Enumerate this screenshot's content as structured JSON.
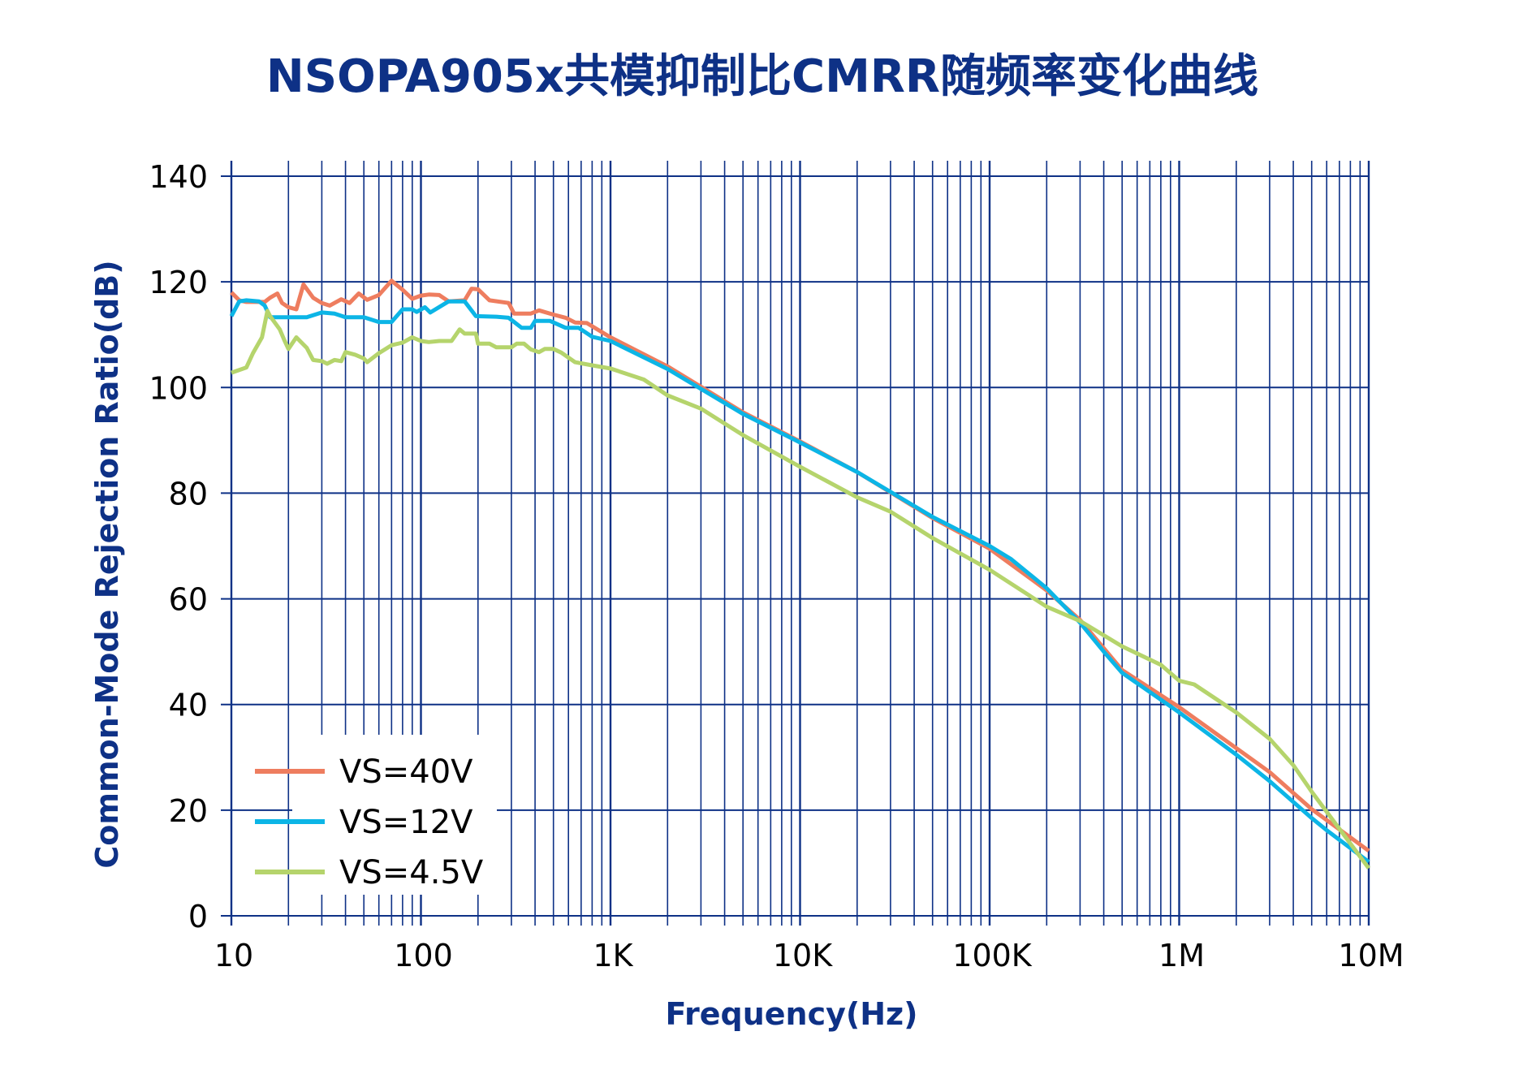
{
  "colors": {
    "title": "#0e3186",
    "grid": "#0e3186",
    "VS=40V": "#ee7d5f",
    "VS=12V": "#0cb5e6",
    "VS=4.5V": "#b5d46c"
  },
  "chart_data": {
    "type": "line",
    "title": "NSOPA905x共模抑制比CMRR随频率变化曲线",
    "xlabel": "Frequency(Hz)",
    "ylabel": "Common-Mode Rejection Ratio(dB)",
    "xscale": "log",
    "xlim": [
      10,
      10000000
    ],
    "ylim": [
      0,
      140
    ],
    "grid": true,
    "legend_position": "bottom-left",
    "xticks": [
      {
        "value": 10,
        "label": "10"
      },
      {
        "value": 100,
        "label": "100"
      },
      {
        "value": 1000,
        "label": "1K"
      },
      {
        "value": 10000,
        "label": "10K"
      },
      {
        "value": 100000,
        "label": "100K"
      },
      {
        "value": 1000000,
        "label": "1M"
      },
      {
        "value": 10000000,
        "label": "10M"
      }
    ],
    "yticks": [
      {
        "value": 0,
        "label": "0"
      },
      {
        "value": 20,
        "label": "20"
      },
      {
        "value": 40,
        "label": "40"
      },
      {
        "value": 60,
        "label": "60"
      },
      {
        "value": 80,
        "label": "80"
      },
      {
        "value": 100,
        "label": "100"
      },
      {
        "value": 120,
        "label": "120"
      },
      {
        "value": 140,
        "label": "140"
      }
    ],
    "series": [
      {
        "name": "VS=40V",
        "points": [
          [
            10,
            118
          ],
          [
            11,
            116.5
          ],
          [
            12,
            116.2
          ],
          [
            15,
            116.2
          ],
          [
            16,
            117
          ],
          [
            17.5,
            117.8
          ],
          [
            18.5,
            116
          ],
          [
            20,
            115.2
          ],
          [
            22,
            114.8
          ],
          [
            24,
            119.5
          ],
          [
            27,
            117
          ],
          [
            30,
            116
          ],
          [
            33,
            115.5
          ],
          [
            38,
            116.7
          ],
          [
            42,
            116
          ],
          [
            47,
            117.8
          ],
          [
            52,
            116.6
          ],
          [
            60,
            117.5
          ],
          [
            70,
            120.2
          ],
          [
            80,
            118.5
          ],
          [
            90,
            116.8
          ],
          [
            100,
            117.4
          ],
          [
            110,
            117.6
          ],
          [
            125,
            117.5
          ],
          [
            140,
            116.3
          ],
          [
            170,
            116.5
          ],
          [
            185,
            118.7
          ],
          [
            200,
            118.6
          ],
          [
            230,
            116.5
          ],
          [
            290,
            116
          ],
          [
            310,
            114
          ],
          [
            380,
            114
          ],
          [
            420,
            114.6
          ],
          [
            500,
            113.8
          ],
          [
            580,
            113.2
          ],
          [
            650,
            112.3
          ],
          [
            750,
            112.2
          ],
          [
            900,
            110.5
          ],
          [
            1000,
            109.5
          ],
          [
            2000,
            104
          ],
          [
            5000,
            95.3
          ],
          [
            10000,
            89.8
          ],
          [
            20000,
            84
          ],
          [
            50000,
            75.3
          ],
          [
            100000,
            69.5
          ],
          [
            200000,
            61.6
          ],
          [
            300000,
            56
          ],
          [
            500000,
            46.5
          ],
          [
            1000000,
            39.5
          ],
          [
            3000000,
            27.2
          ],
          [
            5000000,
            20.2
          ],
          [
            10000000,
            12.3
          ]
        ]
      },
      {
        "name": "VS=12V",
        "points": [
          [
            10,
            113.5
          ],
          [
            11,
            116.3
          ],
          [
            12,
            116.5
          ],
          [
            14,
            116.3
          ],
          [
            15,
            115.5
          ],
          [
            16,
            113.3
          ],
          [
            20,
            113.3
          ],
          [
            25,
            113.3
          ],
          [
            30,
            114.2
          ],
          [
            35,
            114
          ],
          [
            40,
            113.3
          ],
          [
            50,
            113.3
          ],
          [
            60,
            112.4
          ],
          [
            70,
            112.4
          ],
          [
            80,
            114.8
          ],
          [
            90,
            114.8
          ],
          [
            95,
            114.3
          ],
          [
            105,
            115.2
          ],
          [
            112,
            114.2
          ],
          [
            140,
            116.3
          ],
          [
            170,
            116.3
          ],
          [
            195,
            113.5
          ],
          [
            250,
            113.4
          ],
          [
            290,
            113.2
          ],
          [
            340,
            111.3
          ],
          [
            380,
            111.3
          ],
          [
            400,
            112.6
          ],
          [
            480,
            112.6
          ],
          [
            580,
            111.3
          ],
          [
            680,
            111.3
          ],
          [
            800,
            109.6
          ],
          [
            1000,
            108.8
          ],
          [
            2000,
            103.5
          ],
          [
            5000,
            95
          ],
          [
            10000,
            89.6
          ],
          [
            20000,
            84
          ],
          [
            50000,
            75.5
          ],
          [
            100000,
            70
          ],
          [
            130000,
            67.5
          ],
          [
            200000,
            62
          ],
          [
            300000,
            55.5
          ],
          [
            400000,
            50
          ],
          [
            500000,
            46
          ],
          [
            1000000,
            38.5
          ],
          [
            2000000,
            30.5
          ],
          [
            3000000,
            25.5
          ],
          [
            5000000,
            18.5
          ],
          [
            6000000,
            16.2
          ],
          [
            10000000,
            10.2
          ]
        ]
      },
      {
        "name": "VS=4.5V",
        "points": [
          [
            10,
            102.8
          ],
          [
            12,
            103.8
          ],
          [
            13,
            106.5
          ],
          [
            14.5,
            109.5
          ],
          [
            15.5,
            114.5
          ],
          [
            16,
            113.5
          ],
          [
            18,
            111
          ],
          [
            19,
            109
          ],
          [
            20,
            107.3
          ],
          [
            22,
            109.5
          ],
          [
            25,
            107.5
          ],
          [
            27,
            105.2
          ],
          [
            30,
            105
          ],
          [
            32,
            104.5
          ],
          [
            35,
            105.2
          ],
          [
            38,
            105
          ],
          [
            40,
            106.7
          ],
          [
            45,
            106.2
          ],
          [
            50,
            105.5
          ],
          [
            52,
            104.8
          ],
          [
            60,
            106.5
          ],
          [
            70,
            108
          ],
          [
            80,
            108.5
          ],
          [
            90,
            109.5
          ],
          [
            100,
            108.8
          ],
          [
            110,
            108.6
          ],
          [
            125,
            108.8
          ],
          [
            145,
            108.8
          ],
          [
            160,
            111
          ],
          [
            170,
            110.2
          ],
          [
            195,
            110.2
          ],
          [
            200,
            108.3
          ],
          [
            230,
            108.3
          ],
          [
            250,
            107.6
          ],
          [
            300,
            107.6
          ],
          [
            320,
            108.3
          ],
          [
            350,
            108.3
          ],
          [
            380,
            107.2
          ],
          [
            420,
            106.7
          ],
          [
            450,
            107.3
          ],
          [
            500,
            107.3
          ],
          [
            550,
            106.6
          ],
          [
            650,
            104.8
          ],
          [
            800,
            104.2
          ],
          [
            1000,
            103.6
          ],
          [
            1500,
            101.5
          ],
          [
            2000,
            98.5
          ],
          [
            3000,
            96
          ],
          [
            5000,
            91
          ],
          [
            10000,
            85
          ],
          [
            20000,
            79.2
          ],
          [
            30000,
            76.5
          ],
          [
            50000,
            71.5
          ],
          [
            100000,
            65.5
          ],
          [
            200000,
            58.5
          ],
          [
            300000,
            55.8
          ],
          [
            500000,
            51
          ],
          [
            800000,
            47.5
          ],
          [
            1000000,
            44.5
          ],
          [
            1200000,
            43.8
          ],
          [
            2000000,
            38.5
          ],
          [
            3000000,
            33.5
          ],
          [
            4000000,
            28.5
          ],
          [
            5000000,
            23.5
          ],
          [
            10000000,
            9
          ]
        ]
      }
    ]
  }
}
